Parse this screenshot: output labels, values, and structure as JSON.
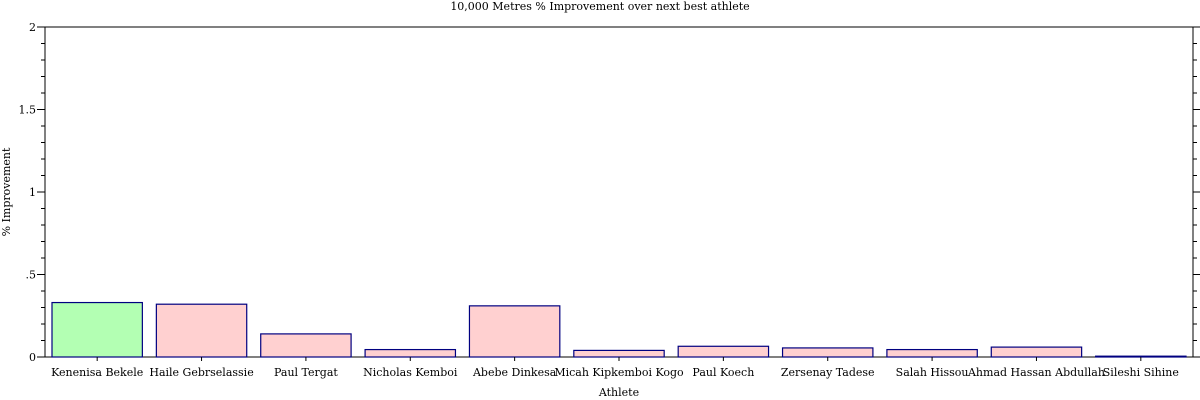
{
  "chart_data": {
    "type": "bar",
    "title": "10,000 Metres % Improvement over next best athlete",
    "xlabel": "Athlete",
    "ylabel": "% Improvement",
    "ylim": [
      0,
      2
    ],
    "yticks": [
      {
        "value": 0,
        "label": "0"
      },
      {
        "value": 0.5,
        "label": ".5"
      },
      {
        "value": 1,
        "label": "1"
      },
      {
        "value": 1.5,
        "label": "1.5"
      },
      {
        "value": 2,
        "label": "2"
      }
    ],
    "categories": [
      "Kenenisa Bekele",
      "Haile Gebrselassie",
      "Paul Tergat",
      "Nicholas Kemboi",
      "Abebe Dinkesa",
      "Micah Kipkemboi Kogo",
      "Paul Koech",
      "Zersenay Tadese",
      "Salah Hissou",
      "Ahmad Hassan Abdullah",
      "Sileshi Sihine"
    ],
    "values": [
      0.33,
      0.32,
      0.14,
      0.045,
      0.31,
      0.04,
      0.065,
      0.055,
      0.045,
      0.06,
      0.005
    ],
    "highlight_index": 0,
    "grid": false,
    "colors": {
      "highlight_fill": "#b3ffb3",
      "bar_fill": "#ffd0d0",
      "bar_stroke": "#000080",
      "axis": "#000000"
    }
  }
}
